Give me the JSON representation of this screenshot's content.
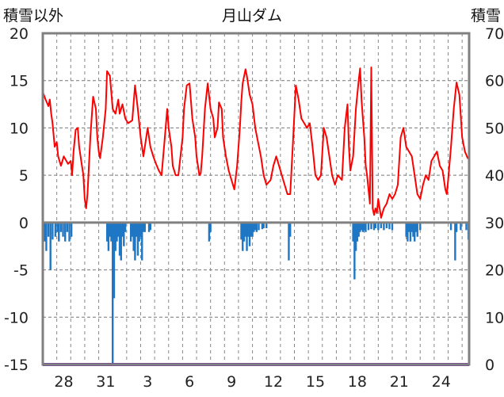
{
  "chart_data": {
    "type": "line",
    "title": "月山ダム",
    "left_axis_label": "積雪以外",
    "right_axis_label": "積雪",
    "left_ylim": [
      -15,
      20
    ],
    "left_yticks": [
      "20",
      "15",
      "10",
      "5",
      "0",
      "-5",
      "-10",
      "-15"
    ],
    "right_ylim": [
      0,
      70
    ],
    "right_yticks": [
      "70",
      "60",
      "50",
      "40",
      "30",
      "20",
      "10",
      "0"
    ],
    "x_range_days": [
      0,
      30.5
    ],
    "x_tick_labels": [
      {
        "day": 1.5,
        "label": "28"
      },
      {
        "day": 4.5,
        "label": "31"
      },
      {
        "day": 7.5,
        "label": "3"
      },
      {
        "day": 10.5,
        "label": "6"
      },
      {
        "day": 13.5,
        "label": "9"
      },
      {
        "day": 16.5,
        "label": "12"
      },
      {
        "day": 19.5,
        "label": "15"
      },
      {
        "day": 22.5,
        "label": "18"
      },
      {
        "day": 25.5,
        "label": "21"
      },
      {
        "day": 28.5,
        "label": "24"
      }
    ],
    "gridlines": true,
    "series": [
      {
        "type": "line",
        "axis": "left",
        "color": "#ff0000",
        "points": [
          [
            0.0,
            13.8
          ],
          [
            0.2,
            13.0
          ],
          [
            0.4,
            12.3
          ],
          [
            0.5,
            13.0
          ],
          [
            0.6,
            11.5
          ],
          [
            0.7,
            10.5
          ],
          [
            0.85,
            8.0
          ],
          [
            1.0,
            8.5
          ],
          [
            1.1,
            7.0
          ],
          [
            1.3,
            6.0
          ],
          [
            1.5,
            7.0
          ],
          [
            1.8,
            6.2
          ],
          [
            2.0,
            6.5
          ],
          [
            2.1,
            5.0
          ],
          [
            2.2,
            7.5
          ],
          [
            2.35,
            9.8
          ],
          [
            2.5,
            10.0
          ],
          [
            2.6,
            8.0
          ],
          [
            2.8,
            6.0
          ],
          [
            2.9,
            5.0
          ],
          [
            3.0,
            2.5
          ],
          [
            3.1,
            1.5
          ],
          [
            3.2,
            3.0
          ],
          [
            3.4,
            9.0
          ],
          [
            3.6,
            13.3
          ],
          [
            3.8,
            12.0
          ],
          [
            3.9,
            9.0
          ],
          [
            4.0,
            7.5
          ],
          [
            4.1,
            6.8
          ],
          [
            4.3,
            9.0
          ],
          [
            4.5,
            12.0
          ],
          [
            4.6,
            16.0
          ],
          [
            4.8,
            15.5
          ],
          [
            5.0,
            12.0
          ],
          [
            5.2,
            11.5
          ],
          [
            5.4,
            13.0
          ],
          [
            5.5,
            11.5
          ],
          [
            5.7,
            12.5
          ],
          [
            5.9,
            11.0
          ],
          [
            6.1,
            10.5
          ],
          [
            6.4,
            10.8
          ],
          [
            6.6,
            14.5
          ],
          [
            6.8,
            12.0
          ],
          [
            7.0,
            9.0
          ],
          [
            7.2,
            7.0
          ],
          [
            7.5,
            10.0
          ],
          [
            7.7,
            8.0
          ],
          [
            7.9,
            7.0
          ],
          [
            8.1,
            6.2
          ],
          [
            8.3,
            5.5
          ],
          [
            8.5,
            5.0
          ],
          [
            8.7,
            8.5
          ],
          [
            8.9,
            12.0
          ],
          [
            9.0,
            10.0
          ],
          [
            9.2,
            8.0
          ],
          [
            9.3,
            6.0
          ],
          [
            9.5,
            5.0
          ],
          [
            9.7,
            5.0
          ],
          [
            10.0,
            9.0
          ],
          [
            10.1,
            12.0
          ],
          [
            10.3,
            14.5
          ],
          [
            10.5,
            14.7
          ],
          [
            10.7,
            11.0
          ],
          [
            10.9,
            9.0
          ],
          [
            11.0,
            7.0
          ],
          [
            11.2,
            5.0
          ],
          [
            11.3,
            5.2
          ],
          [
            11.4,
            7.0
          ],
          [
            11.6,
            12.0
          ],
          [
            11.8,
            14.7
          ],
          [
            12.0,
            12.0
          ],
          [
            12.2,
            11.0
          ],
          [
            12.3,
            9.0
          ],
          [
            12.5,
            10.0
          ],
          [
            12.6,
            12.7
          ],
          [
            12.8,
            12.0
          ],
          [
            12.9,
            9.0
          ],
          [
            13.1,
            7.0
          ],
          [
            13.3,
            5.5
          ],
          [
            13.5,
            4.5
          ],
          [
            13.7,
            3.5
          ],
          [
            13.9,
            6.0
          ],
          [
            14.1,
            10.0
          ],
          [
            14.2,
            12.8
          ],
          [
            14.3,
            14.7
          ],
          [
            14.5,
            16.2
          ],
          [
            14.6,
            15.5
          ],
          [
            14.8,
            13.5
          ],
          [
            15.0,
            12.5
          ],
          [
            15.2,
            10.0
          ],
          [
            15.4,
            8.5
          ],
          [
            15.6,
            7.0
          ],
          [
            15.8,
            5.0
          ],
          [
            16.0,
            4.0
          ],
          [
            16.3,
            4.5
          ],
          [
            16.5,
            6.0
          ],
          [
            16.7,
            7.0
          ],
          [
            16.9,
            6.0
          ],
          [
            17.1,
            5.0
          ],
          [
            17.3,
            4.0
          ],
          [
            17.5,
            3.0
          ],
          [
            17.7,
            3.0
          ],
          [
            17.9,
            8.5
          ],
          [
            18.1,
            14.5
          ],
          [
            18.3,
            13.0
          ],
          [
            18.5,
            11.0
          ],
          [
            18.7,
            10.5
          ],
          [
            18.9,
            10.0
          ],
          [
            19.1,
            10.5
          ],
          [
            19.3,
            8.0
          ],
          [
            19.5,
            5.0
          ],
          [
            19.7,
            4.5
          ],
          [
            19.9,
            5.0
          ],
          [
            20.1,
            10.0
          ],
          [
            20.3,
            9.0
          ],
          [
            20.5,
            7.0
          ],
          [
            20.7,
            5.0
          ],
          [
            20.9,
            4.0
          ],
          [
            21.1,
            5.0
          ],
          [
            21.4,
            4.5
          ],
          [
            21.6,
            10.0
          ],
          [
            21.8,
            12.5
          ],
          [
            21.9,
            8.0
          ],
          [
            22.0,
            5.5
          ],
          [
            22.2,
            7.0
          ],
          [
            22.4,
            12.0
          ],
          [
            22.6,
            15.0
          ],
          [
            22.7,
            16.3
          ],
          [
            22.8,
            13.0
          ],
          [
            22.9,
            11.0
          ],
          [
            23.0,
            9.0
          ],
          [
            23.1,
            6.0
          ],
          [
            23.2,
            5.0
          ],
          [
            23.3,
            3.5
          ],
          [
            23.4,
            2.0
          ],
          [
            23.5,
            16.4
          ],
          [
            23.6,
            1.5
          ],
          [
            23.7,
            0.8
          ],
          [
            23.8,
            1.5
          ],
          [
            23.9,
            1.0
          ],
          [
            24.0,
            2.5
          ],
          [
            24.2,
            0.5
          ],
          [
            24.4,
            1.5
          ],
          [
            24.6,
            2.0
          ],
          [
            24.8,
            3.0
          ],
          [
            25.0,
            2.5
          ],
          [
            25.2,
            3.0
          ],
          [
            25.4,
            4.0
          ],
          [
            25.6,
            9.0
          ],
          [
            25.8,
            10.0
          ],
          [
            26.0,
            8.0
          ],
          [
            26.2,
            7.5
          ],
          [
            26.4,
            7.0
          ],
          [
            26.6,
            5.0
          ],
          [
            26.8,
            3.0
          ],
          [
            27.0,
            2.5
          ],
          [
            27.2,
            4.0
          ],
          [
            27.4,
            5.0
          ],
          [
            27.6,
            4.5
          ],
          [
            27.8,
            6.5
          ],
          [
            28.0,
            7.0
          ],
          [
            28.2,
            7.5
          ],
          [
            28.4,
            6.0
          ],
          [
            28.6,
            5.5
          ],
          [
            28.8,
            3.5
          ],
          [
            28.9,
            3.0
          ],
          [
            29.0,
            4.5
          ],
          [
            29.2,
            8.0
          ],
          [
            29.4,
            12.0
          ],
          [
            29.6,
            14.8
          ],
          [
            29.8,
            13.5
          ],
          [
            30.0,
            9.0
          ],
          [
            30.2,
            7.5
          ],
          [
            30.4,
            6.8
          ],
          [
            30.5,
            7.0
          ]
        ]
      },
      {
        "type": "bar",
        "axis": "left",
        "color": "#1f77c4",
        "bars": [
          [
            0.15,
            -2.0
          ],
          [
            0.25,
            -3.0
          ],
          [
            0.4,
            -1.5
          ],
          [
            0.55,
            -5.0
          ],
          [
            0.7,
            -1.8
          ],
          [
            0.9,
            -1.5
          ],
          [
            1.05,
            -1.0
          ],
          [
            1.15,
            -2.0
          ],
          [
            1.3,
            -1.0
          ],
          [
            1.45,
            -1.5
          ],
          [
            1.6,
            -2.0
          ],
          [
            1.75,
            -1.0
          ],
          [
            1.9,
            -2.0
          ],
          [
            2.05,
            -1.5
          ],
          [
            4.6,
            -2.0
          ],
          [
            4.7,
            -3.0
          ],
          [
            4.8,
            -1.5
          ],
          [
            4.9,
            -2.0
          ],
          [
            5.0,
            -15.0
          ],
          [
            5.1,
            -8.0
          ],
          [
            5.2,
            -3.0
          ],
          [
            5.3,
            -2.0
          ],
          [
            5.4,
            -1.5
          ],
          [
            5.5,
            -3.5
          ],
          [
            5.6,
            -4.0
          ],
          [
            5.7,
            -1.5
          ],
          [
            5.8,
            -2.5
          ],
          [
            5.9,
            -1.0
          ],
          [
            6.3,
            -2.0
          ],
          [
            6.4,
            -1.5
          ],
          [
            6.5,
            -3.0
          ],
          [
            6.6,
            -4.0
          ],
          [
            6.7,
            -1.5
          ],
          [
            6.8,
            -3.5
          ],
          [
            6.9,
            -2.0
          ],
          [
            7.0,
            -1.5
          ],
          [
            7.1,
            -4.0
          ],
          [
            7.2,
            -1.0
          ],
          [
            7.3,
            -1.0
          ],
          [
            7.6,
            -1.0
          ],
          [
            7.7,
            -0.8
          ],
          [
            11.9,
            -2.0
          ],
          [
            12.0,
            -1.0
          ],
          [
            14.2,
            -1.8
          ],
          [
            14.3,
            -3.0
          ],
          [
            14.4,
            -2.0
          ],
          [
            14.5,
            -1.5
          ],
          [
            14.6,
            -3.0
          ],
          [
            14.7,
            -1.5
          ],
          [
            14.8,
            -2.5
          ],
          [
            14.9,
            -1.5
          ],
          [
            15.0,
            -1.5
          ],
          [
            15.1,
            -1.0
          ],
          [
            15.2,
            -0.8
          ],
          [
            15.3,
            -1.0
          ],
          [
            15.45,
            -0.8
          ],
          [
            15.7,
            -0.7
          ],
          [
            15.8,
            -0.6
          ],
          [
            16.0,
            -0.6
          ],
          [
            17.6,
            -4.0
          ],
          [
            17.7,
            -1.5
          ],
          [
            22.2,
            -2.0
          ],
          [
            22.3,
            -6.0
          ],
          [
            22.4,
            -3.0
          ],
          [
            22.5,
            -2.0
          ],
          [
            22.6,
            -1.5
          ],
          [
            22.7,
            -1.0
          ],
          [
            22.8,
            -0.8
          ],
          [
            22.9,
            -1.0
          ],
          [
            23.0,
            -0.8
          ],
          [
            23.1,
            -1.0
          ],
          [
            23.3,
            -0.8
          ],
          [
            23.5,
            -0.7
          ],
          [
            23.7,
            -0.8
          ],
          [
            23.8,
            -0.6
          ],
          [
            24.0,
            -0.8
          ],
          [
            24.2,
            -0.6
          ],
          [
            24.4,
            -0.8
          ],
          [
            24.6,
            -0.6
          ],
          [
            24.8,
            -0.7
          ],
          [
            25.0,
            -0.8
          ],
          [
            26.0,
            -1.5
          ],
          [
            26.1,
            -2.0
          ],
          [
            26.2,
            -1.0
          ],
          [
            26.3,
            -2.0
          ],
          [
            26.4,
            -1.0
          ],
          [
            26.5,
            -1.5
          ],
          [
            26.6,
            -2.0
          ],
          [
            26.7,
            -1.0
          ],
          [
            26.8,
            -1.5
          ],
          [
            27.0,
            -0.8
          ],
          [
            29.2,
            -0.8
          ],
          [
            29.5,
            -4.0
          ],
          [
            29.6,
            -1.0
          ],
          [
            29.9,
            -0.8
          ],
          [
            30.3,
            -0.8
          ],
          [
            30.45,
            -1.8
          ]
        ]
      },
      {
        "type": "line",
        "axis": "right",
        "color": "#7030a0",
        "points": [
          [
            0.0,
            0
          ],
          [
            30.5,
            0
          ]
        ]
      }
    ]
  }
}
